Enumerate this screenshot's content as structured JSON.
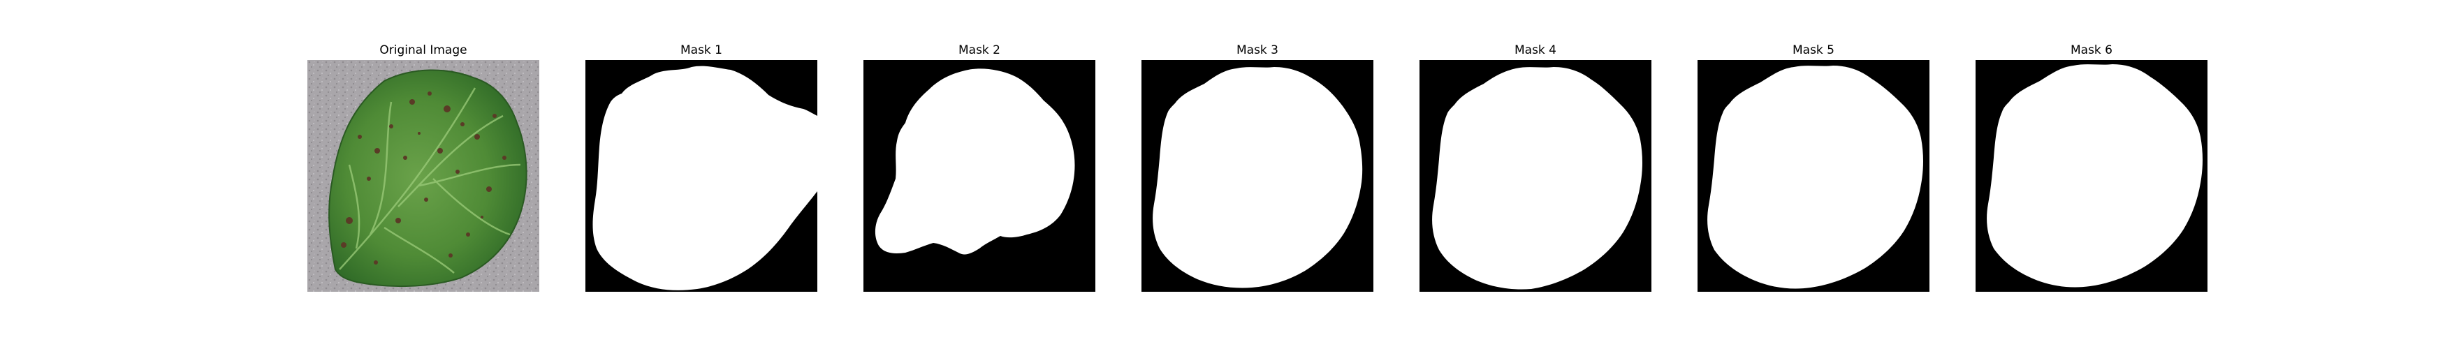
{
  "figure": {
    "panels": [
      {
        "title": "Original Image",
        "kind": "image",
        "content": "strawberry leaf with brown spots on gray background"
      },
      {
        "title": "Mask 1",
        "kind": "mask"
      },
      {
        "title": "Mask 2",
        "kind": "mask"
      },
      {
        "title": "Mask 3",
        "kind": "mask"
      },
      {
        "title": "Mask 4",
        "kind": "mask"
      },
      {
        "title": "Mask 5",
        "kind": "mask"
      },
      {
        "title": "Mask 6",
        "kind": "mask"
      }
    ]
  },
  "colors": {
    "background": "#ffffff",
    "mask_background": "#000000",
    "mask_foreground": "#ffffff",
    "gravel": "#a9a6aa",
    "leaf_dark": "#2f6a27",
    "leaf_mid": "#4f8b36",
    "leaf_light": "#7fae58",
    "spot": "#5a3b26"
  }
}
